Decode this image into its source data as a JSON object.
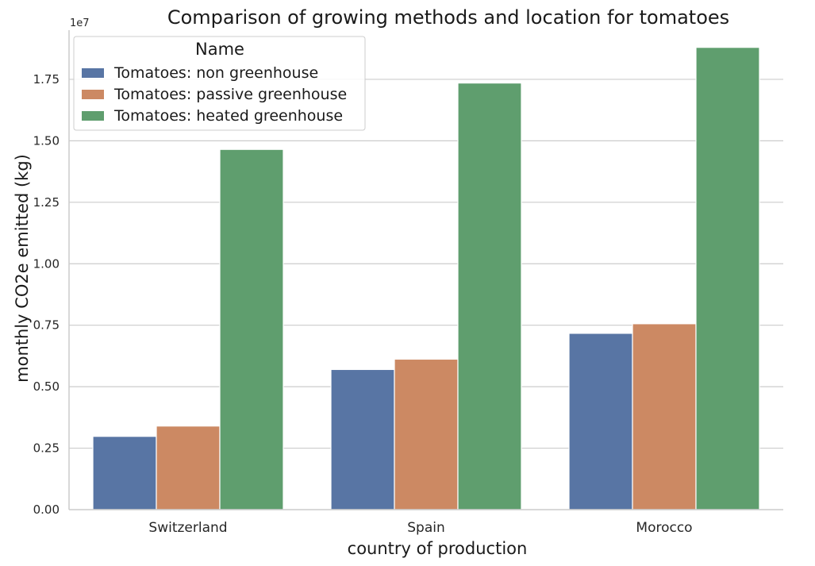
{
  "chart_data": {
    "type": "bar",
    "title": "Comparison of growing methods and location for tomatoes",
    "xlabel": "country of production",
    "ylabel": "monthly CO2e emitted (kg)",
    "y_offset_label": "1e7",
    "categories": [
      "Switzerland",
      "Spain",
      "Morocco"
    ],
    "series": [
      {
        "name": "Tomatoes: non greenhouse",
        "color": "#5875a4",
        "values": [
          2980000,
          5700000,
          7170000
        ]
      },
      {
        "name": "Tomatoes: passive greenhouse",
        "color": "#cc8963",
        "values": [
          3400000,
          6120000,
          7560000
        ]
      },
      {
        "name": "Tomatoes: heated greenhouse",
        "color": "#5f9e6e",
        "values": [
          14650000,
          17350000,
          18800000
        ]
      }
    ],
    "ylim": [
      0,
      19500000
    ],
    "yticks": [
      0,
      2500000,
      5000000,
      7500000,
      10000000,
      12500000,
      15000000,
      17500000
    ],
    "ytick_labels": [
      "0.00",
      "0.25",
      "0.50",
      "0.75",
      "1.00",
      "1.25",
      "1.50",
      "1.75"
    ],
    "grid": "horizontal",
    "legend_title": "Name",
    "legend_position": "upper-left"
  }
}
